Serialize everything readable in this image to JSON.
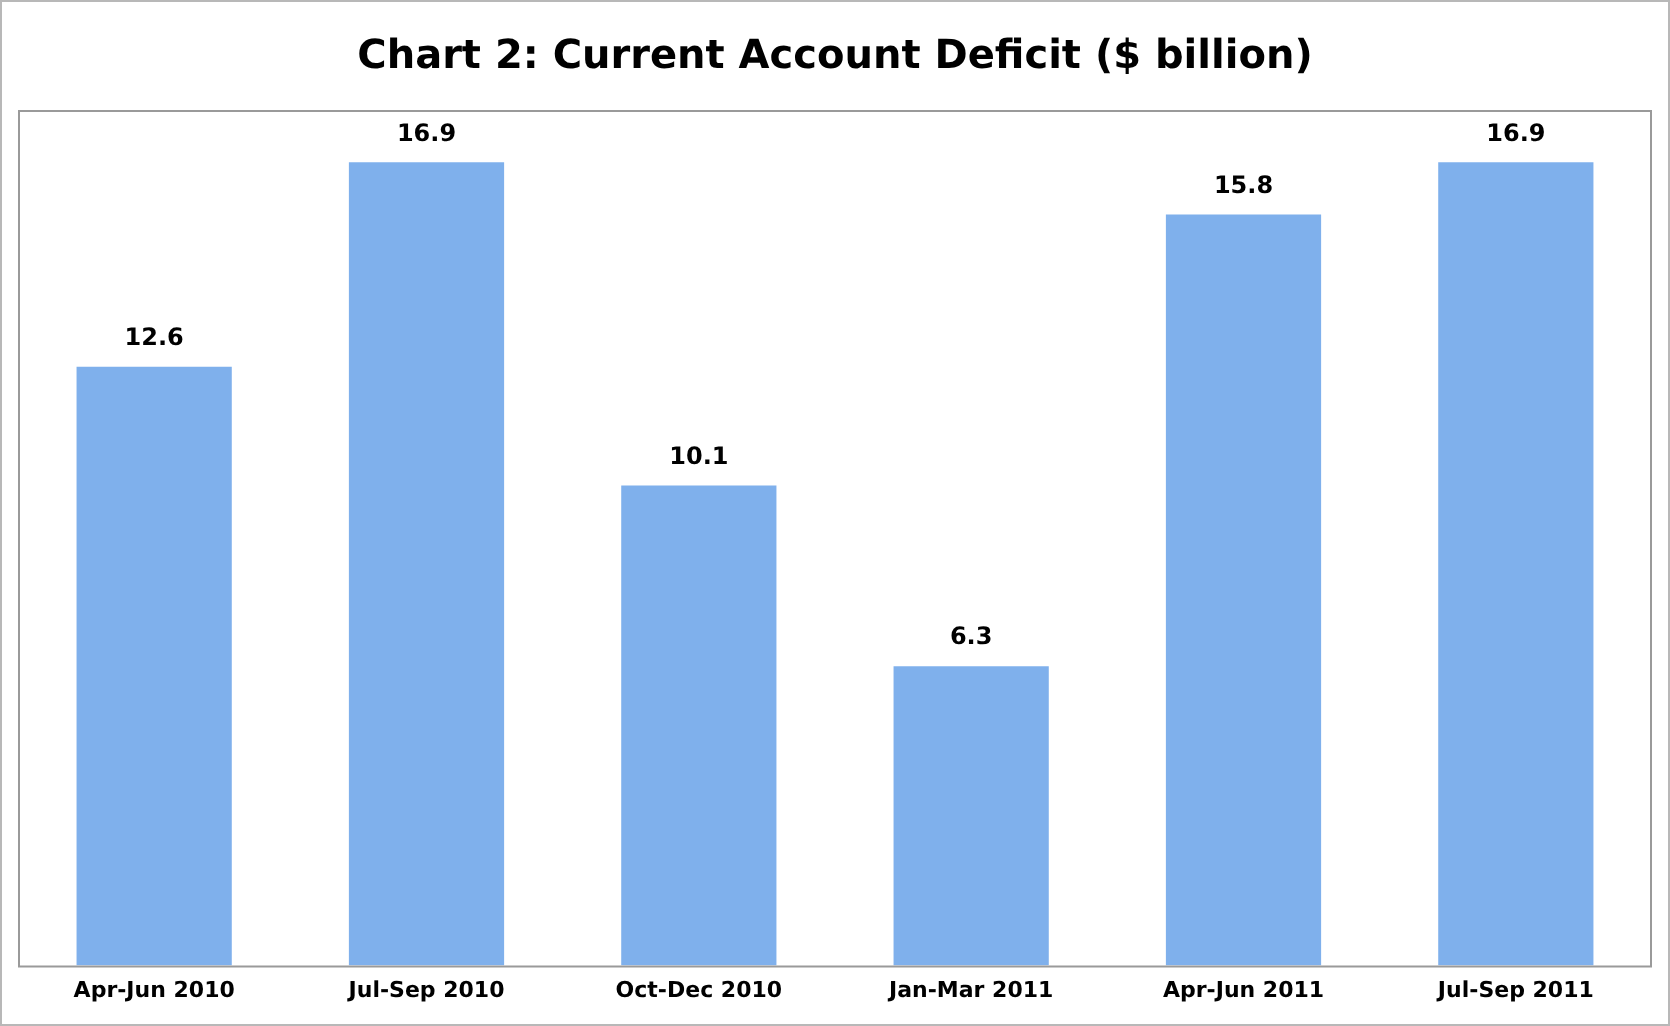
{
  "chart_data": {
    "type": "bar",
    "title": "Chart 2: Current Account Deficit ($ billion)",
    "categories": [
      "Apr-Jun 2010",
      "Jul-Sep 2010",
      "Oct-Dec 2010",
      "Jan-Mar 2011",
      "Apr-Jun 2011",
      "Jul-Sep 2011"
    ],
    "values": [
      12.6,
      16.9,
      10.1,
      6.3,
      15.8,
      16.9
    ],
    "color": "#7fb0ec",
    "data_labels": true,
    "ylim": [
      0,
      18
    ],
    "tick_labels": "x",
    "grid": false,
    "legend": false
  }
}
